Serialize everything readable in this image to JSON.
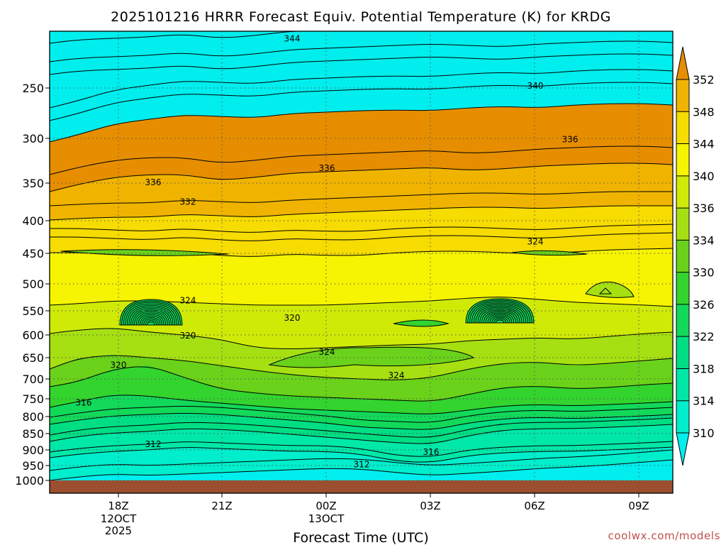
{
  "title": "2025101216 HRRR Forecast Equiv. Potential Temperature (K) for KRDG",
  "credit": "coolwx.com/models",
  "chart_data": {
    "type": "heatmap",
    "title": "2025101216 HRRR Forecast Equiv. Potential Temperature (K) for KRDG",
    "xlabel": "Forecast Time (UTC)",
    "ylabel": "",
    "y_scale": "log-pressure",
    "y_ticks": [
      "250",
      "300",
      "350",
      "400",
      "450",
      "500",
      "550",
      "600",
      "650",
      "700",
      "750",
      "800",
      "850",
      "900",
      "950",
      "1000"
    ],
    "x_ticks": [
      {
        "label": "18Z",
        "sub": [
          "12OCT",
          "2025"
        ]
      },
      {
        "label": "21Z",
        "sub": []
      },
      {
        "label": "00Z",
        "sub": [
          "13OCT"
        ]
      },
      {
        "label": "03Z",
        "sub": []
      },
      {
        "label": "06Z",
        "sub": []
      },
      {
        "label": "09Z",
        "sub": []
      }
    ],
    "colorbar_ticks": [
      "352",
      "348",
      "344",
      "340",
      "336",
      "334",
      "330",
      "326",
      "322",
      "318",
      "314",
      "310"
    ],
    "colors": [
      "#00eeee",
      "#00eecc",
      "#00e8a8",
      "#00de84",
      "#12d95a",
      "#33d42e",
      "#6ad21a",
      "#a6e012",
      "#d0ea08",
      "#f6f400",
      "#f6dc00",
      "#f0b400",
      "#e68e00"
    ],
    "grid": true,
    "contour_labels": [
      {
        "text": "344",
        "time": "23Z",
        "level": 210
      },
      {
        "text": "340",
        "time": "06Z",
        "level": 248
      },
      {
        "text": "336",
        "time": "19Z",
        "level": 349
      },
      {
        "text": "336",
        "time": "00Z",
        "level": 332
      },
      {
        "text": "336",
        "time": "07Z",
        "level": 300
      },
      {
        "text": "332",
        "time": "20Z",
        "level": 374
      },
      {
        "text": "324",
        "time": "06Z",
        "level": 430
      },
      {
        "text": "324",
        "time": "20Z",
        "level": 530
      },
      {
        "text": "320",
        "time": "23Z",
        "level": 563
      },
      {
        "text": "320",
        "time": "20Z",
        "level": 600
      },
      {
        "text": "324",
        "time": "00Z",
        "level": 635
      },
      {
        "text": "320",
        "time": "18Z",
        "level": 665
      },
      {
        "text": "324",
        "time": "02Z",
        "level": 690
      },
      {
        "text": "316",
        "time": "17Z",
        "level": 760
      },
      {
        "text": "312",
        "time": "19Z",
        "level": 880
      },
      {
        "text": "316",
        "time": "03Z",
        "level": 905
      },
      {
        "text": "312",
        "time": "01Z",
        "level": 945
      }
    ]
  }
}
